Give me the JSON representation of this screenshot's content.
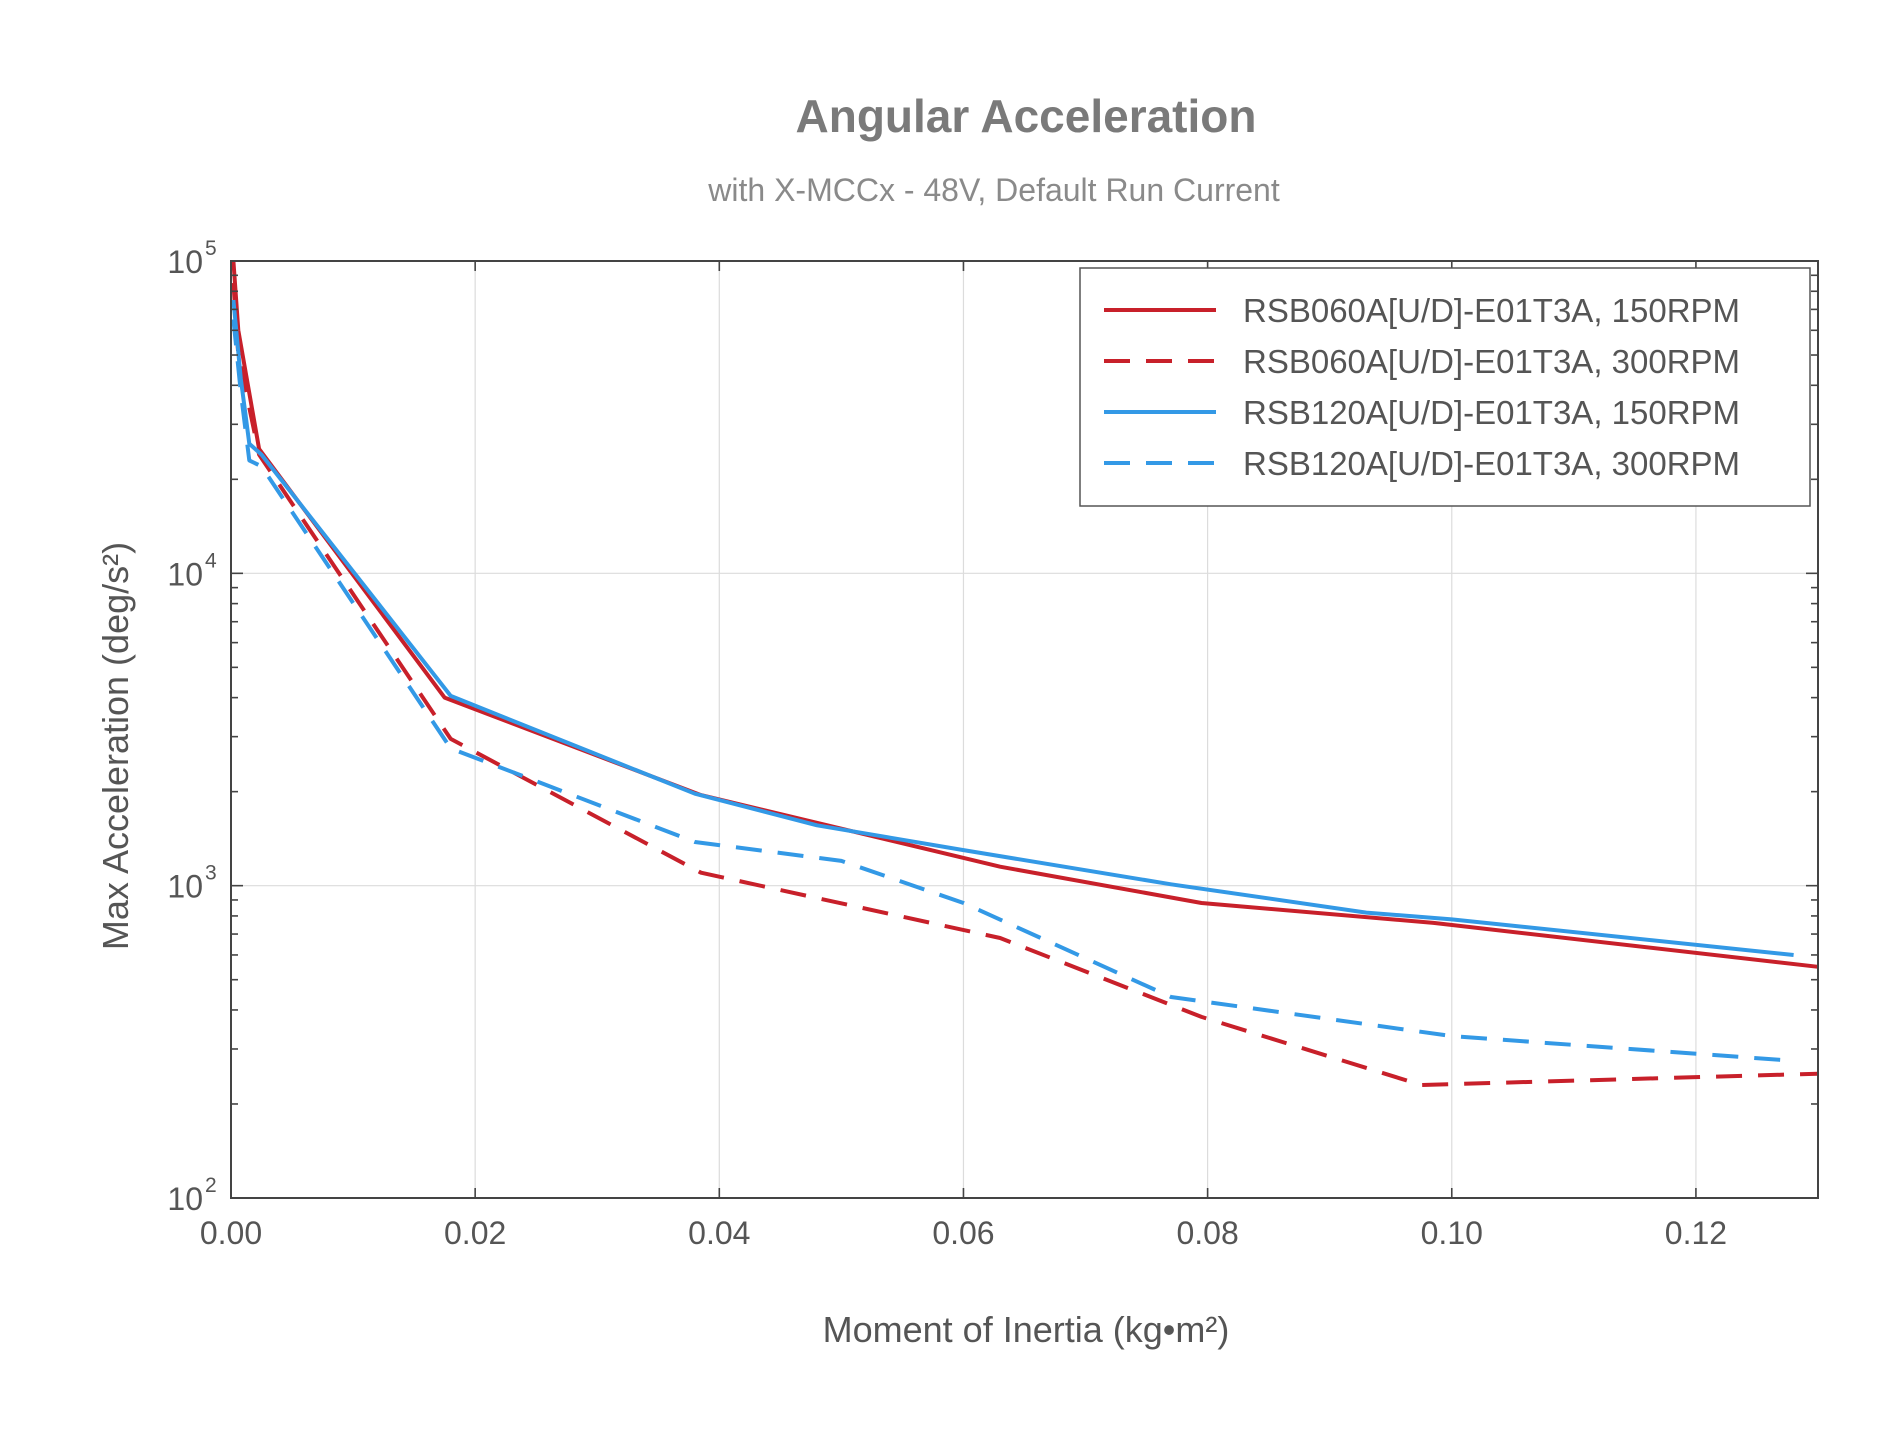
{
  "chart_data": {
    "type": "line",
    "title": "Angular Acceleration",
    "subtitle": "with X-MCCx - 48V, Default Run Current",
    "xlabel": "Moment of Inertia (kg•m²)",
    "ylabel": "Max Acceleration (deg/s²)",
    "xlim": [
      0,
      0.13
    ],
    "ylim": [
      100,
      100000
    ],
    "y_scale": "log",
    "x_ticks": [
      {
        "value": 0.0,
        "label": "0.00"
      },
      {
        "value": 0.02,
        "label": "0.02"
      },
      {
        "value": 0.04,
        "label": "0.04"
      },
      {
        "value": 0.06,
        "label": "0.06"
      },
      {
        "value": 0.08,
        "label": "0.08"
      },
      {
        "value": 0.1,
        "label": "0.10"
      },
      {
        "value": 0.12,
        "label": "0.12"
      }
    ],
    "y_ticks": [
      {
        "value": 100,
        "base": "10",
        "exp": "2"
      },
      {
        "value": 1000,
        "base": "10",
        "exp": "3"
      },
      {
        "value": 10000,
        "base": "10",
        "exp": "4"
      },
      {
        "value": 100000,
        "base": "10",
        "exp": "5"
      }
    ],
    "grid": true,
    "legend_position": "top-right",
    "series": [
      {
        "name": "RSB060A[U/D]-E01T3A, 150RPM",
        "color": "#c8202a",
        "dash": "solid",
        "x": [
          0.0002,
          0.0006,
          0.0023,
          0.0175,
          0.0385,
          0.063,
          0.0795,
          0.0985,
          0.13
        ],
        "y": [
          100000,
          60000,
          25000,
          4000,
          1950,
          1150,
          880,
          760,
          550
        ]
      },
      {
        "name": "RSB060A[U/D]-E01T3A, 300RPM",
        "color": "#c8202a",
        "dash": "dashed",
        "x": [
          0.0002,
          0.0006,
          0.0023,
          0.018,
          0.0385,
          0.063,
          0.0795,
          0.0975,
          0.13
        ],
        "y": [
          85000,
          50000,
          24000,
          2950,
          1100,
          680,
          380,
          230,
          250
        ]
      },
      {
        "name": "RSB120A[U/D]-E01T3A, 150RPM",
        "color": "#3399e6",
        "dash": "solid",
        "x": [
          0.0002,
          0.0008,
          0.0015,
          0.0025,
          0.018,
          0.038,
          0.048,
          0.06,
          0.077,
          0.093,
          0.1,
          0.128
        ],
        "y": [
          75000,
          42000,
          26000,
          24000,
          4050,
          1970,
          1560,
          1300,
          1010,
          820,
          780,
          600
        ]
      },
      {
        "name": "RSB120A[U/D]-E01T3A, 300RPM",
        "color": "#3399e6",
        "dash": "dashed",
        "x": [
          0.0002,
          0.0008,
          0.0015,
          0.0025,
          0.018,
          0.038,
          0.05,
          0.06,
          0.077,
          0.1,
          0.128
        ],
        "y": [
          65000,
          38000,
          23000,
          22000,
          2750,
          1380,
          1200,
          880,
          440,
          330,
          275
        ]
      }
    ]
  }
}
